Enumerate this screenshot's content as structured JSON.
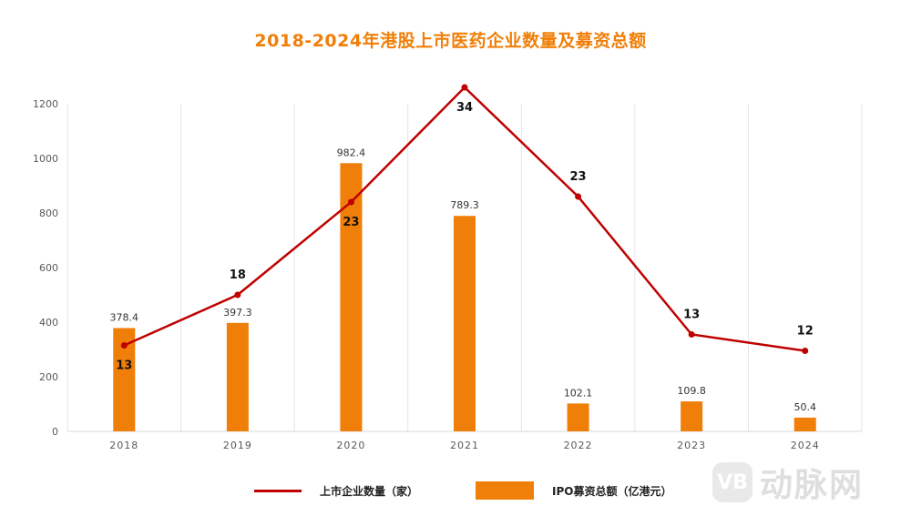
{
  "chart_data": {
    "type": "bar",
    "title": "2018-2024年港股上市医药企业数量及募资总额",
    "categories": [
      "2018",
      "2019",
      "2020",
      "2021",
      "2022",
      "2023",
      "2024"
    ],
    "ylim": [
      0,
      1200
    ],
    "yticks": [
      0,
      200,
      400,
      600,
      800,
      1000,
      1200
    ],
    "grid": "vertical",
    "legend_position": "bottom",
    "series": [
      {
        "name": "上市企业数量（家）",
        "type": "line",
        "values": [
          13,
          18,
          23,
          34,
          23,
          13,
          12
        ],
        "plotted_values_on_left_axis": [
          315,
          500,
          840,
          1260,
          860,
          355,
          295
        ],
        "label_side": [
          "below",
          "above",
          "below",
          "below",
          "above",
          "above",
          "above"
        ],
        "color": "#c00000"
      },
      {
        "name": "IPO募资总额（亿港元）",
        "type": "bar",
        "values": [
          378.4,
          397.3,
          982.4,
          789.3,
          102.1,
          109.8,
          50.4
        ],
        "color": "#f07f09"
      }
    ]
  },
  "watermark": {
    "logo_text": "VB",
    "text": "动脉网"
  }
}
